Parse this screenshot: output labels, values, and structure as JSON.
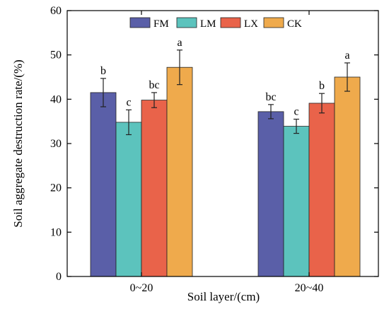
{
  "chart_data": {
    "type": "bar",
    "xlabel": "Soil layer/(cm)",
    "ylabel": "Soil aggregate destruction rate/(%)",
    "ylim": [
      0,
      60
    ],
    "yticks": [
      "0",
      "10",
      "20",
      "30",
      "40",
      "50",
      "60"
    ],
    "categories": [
      "0~20",
      "20~40"
    ],
    "legend_position": "top-center",
    "grid": false,
    "series": [
      {
        "name": "FM",
        "color": "#5a5fa8",
        "values": [
          41.5,
          37.2
        ],
        "errors": [
          3.2,
          1.6
        ],
        "labels": [
          "b",
          "bc"
        ]
      },
      {
        "name": "LM",
        "color": "#5cc3bd",
        "values": [
          34.8,
          33.9
        ],
        "errors": [
          2.8,
          1.6
        ],
        "labels": [
          "c",
          "c"
        ]
      },
      {
        "name": "LX",
        "color": "#e9634a",
        "values": [
          39.8,
          39.1
        ],
        "errors": [
          1.7,
          2.2
        ],
        "labels": [
          "bc",
          "b"
        ]
      },
      {
        "name": "CK",
        "color": "#efaa4c",
        "values": [
          47.2,
          45.0
        ],
        "errors": [
          3.9,
          3.2
        ],
        "labels": [
          "a",
          "a"
        ]
      }
    ]
  }
}
